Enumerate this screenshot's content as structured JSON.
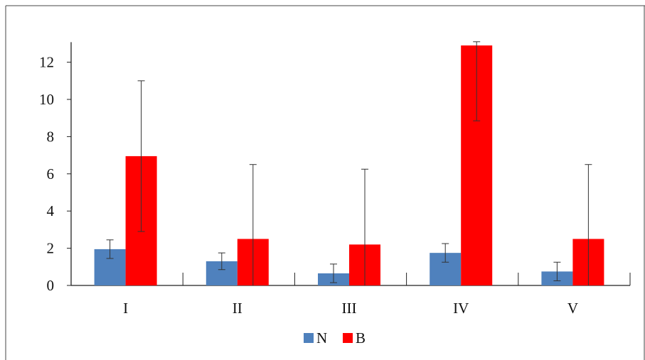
{
  "chart_data": {
    "type": "bar",
    "categories": [
      "I",
      "II",
      "III",
      "IV",
      "V"
    ],
    "series": [
      {
        "name": "N",
        "color": "#4f81bd",
        "values": [
          1.95,
          1.3,
          0.65,
          1.75,
          0.75
        ],
        "errors": [
          0.5,
          0.45,
          0.5,
          0.5,
          0.5
        ]
      },
      {
        "name": "B",
        "color": "#ff0000",
        "values": [
          6.95,
          2.5,
          2.2,
          12.9,
          2.5
        ],
        "errors": [
          4.05,
          4.0,
          4.05,
          4.05,
          4.0
        ]
      }
    ],
    "yticks": [
      "0",
      "2",
      "4",
      "6",
      "8",
      "10",
      "12"
    ],
    "ylim": [
      0,
      13
    ],
    "xlabel": "",
    "ylabel": "",
    "title": "",
    "grid": false,
    "legend": "bottom-center"
  }
}
